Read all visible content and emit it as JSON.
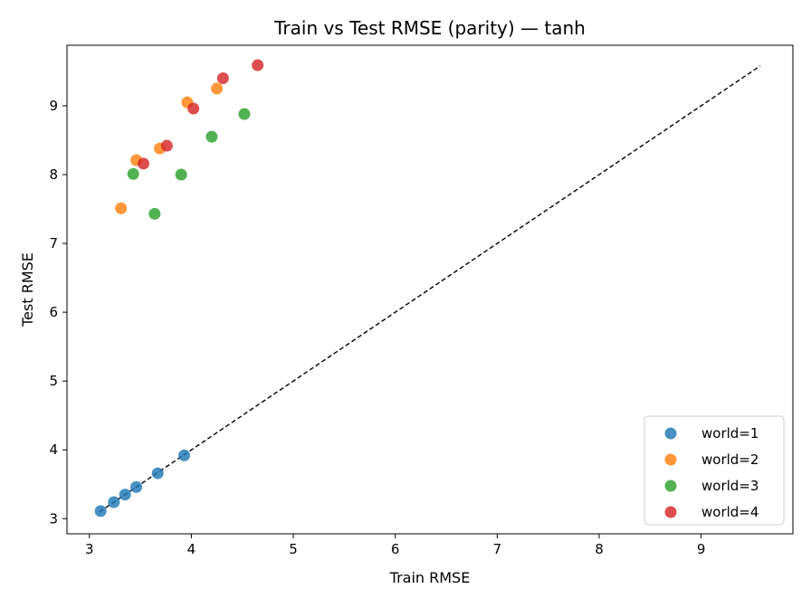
{
  "chart_data": {
    "type": "scatter",
    "title": "Train vs Test RMSE (parity) — tanh",
    "xlabel": "Train RMSE",
    "ylabel": "Test RMSE",
    "xlim": [
      2.78,
      9.9
    ],
    "ylim": [
      2.78,
      9.88
    ],
    "x_ticks": [
      3,
      4,
      5,
      6,
      7,
      8,
      9
    ],
    "y_ticks": [
      3,
      4,
      5,
      6,
      7,
      8,
      9
    ],
    "grid": false,
    "legend_position": "bottom-right",
    "reference_line": {
      "style": "dashed",
      "color": "#000000",
      "from": [
        3.1,
        3.1
      ],
      "to": [
        9.58,
        9.58
      ]
    },
    "series": [
      {
        "name": "world=1",
        "color": "#1f77b4",
        "points": [
          [
            3.11,
            3.11
          ],
          [
            3.24,
            3.24
          ],
          [
            3.35,
            3.35
          ],
          [
            3.46,
            3.46
          ],
          [
            3.67,
            3.66
          ],
          [
            3.93,
            3.92
          ]
        ]
      },
      {
        "name": "world=2",
        "color": "#ff7f0e",
        "points": [
          [
            3.31,
            7.51
          ],
          [
            3.46,
            8.21
          ],
          [
            3.69,
            8.38
          ],
          [
            3.96,
            9.05
          ],
          [
            4.25,
            9.25
          ]
        ]
      },
      {
        "name": "world=3",
        "color": "#2ca02c",
        "points": [
          [
            3.43,
            8.01
          ],
          [
            3.64,
            7.43
          ],
          [
            3.9,
            8.0
          ],
          [
            4.2,
            8.55
          ],
          [
            4.52,
            8.88
          ]
        ]
      },
      {
        "name": "world=4",
        "color": "#d62728",
        "points": [
          [
            3.53,
            8.16
          ],
          [
            3.76,
            8.42
          ],
          [
            4.02,
            8.96
          ],
          [
            4.31,
            9.4
          ],
          [
            4.65,
            9.59
          ]
        ]
      }
    ]
  }
}
